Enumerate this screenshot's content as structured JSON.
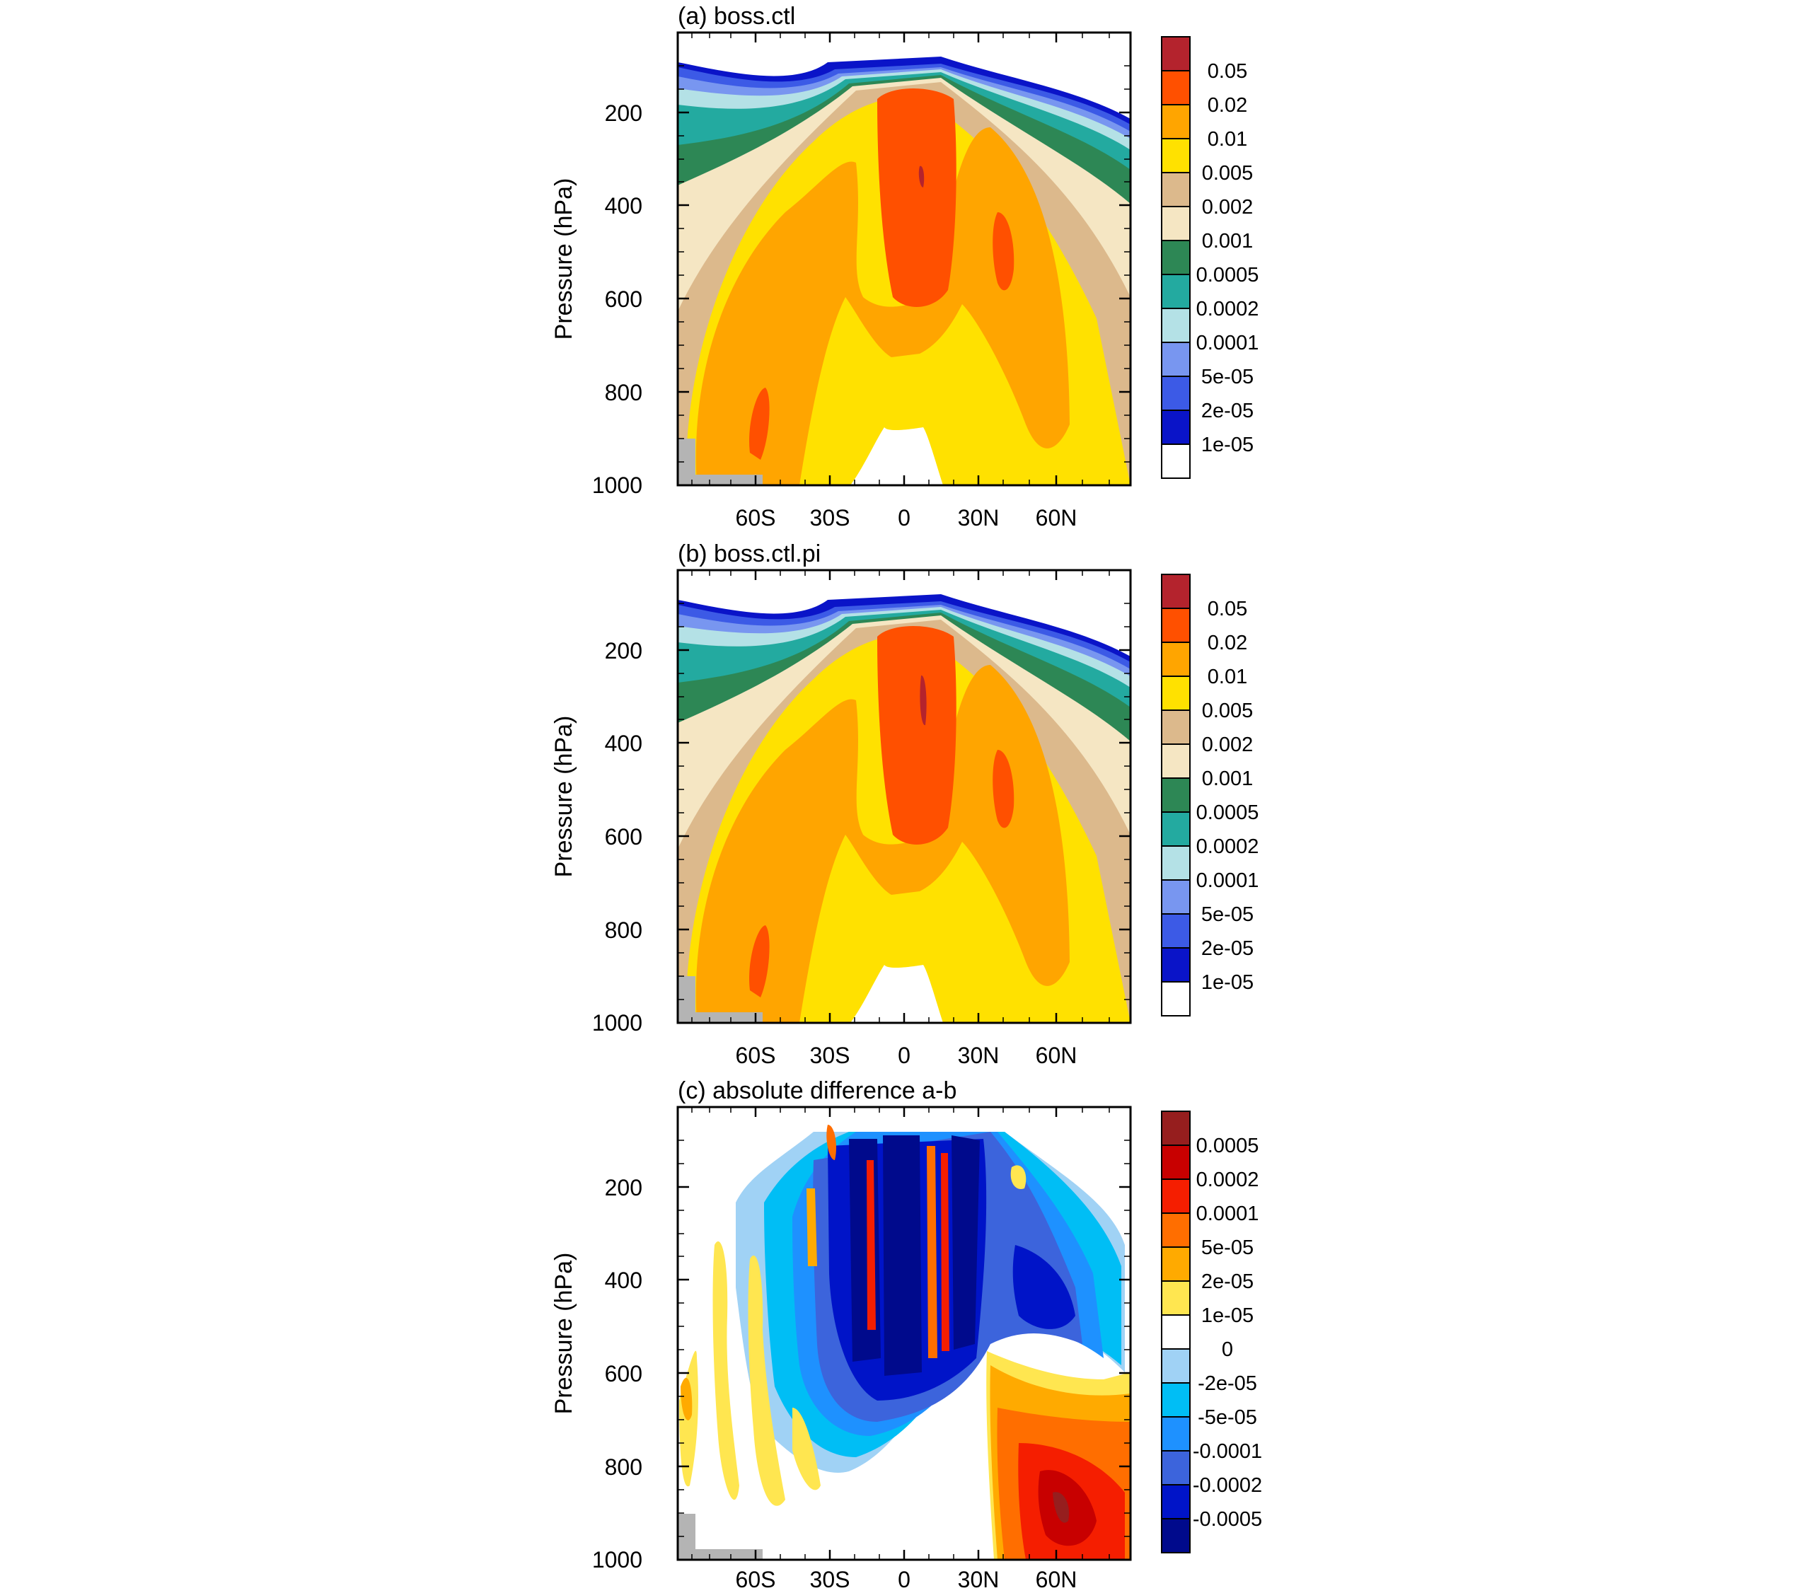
{
  "figure": {
    "panels": [
      {
        "id": "a",
        "title": "(a) boss.ctl",
        "ylabel": "Pressure (hPa)",
        "yticks": [
          "200",
          "400",
          "600",
          "800",
          "1000"
        ],
        "xticks": [
          "60S",
          "30S",
          "0",
          "30N",
          "60N"
        ],
        "colorbar_labels": [
          "0.05",
          "0.02",
          "0.01",
          "0.005",
          "0.002",
          "0.001",
          "0.0005",
          "0.0002",
          "0.0001",
          "5e-05",
          "2e-05",
          "1e-05"
        ]
      },
      {
        "id": "b",
        "title": "(b) boss.ctl.pi",
        "ylabel": "Pressure (hPa)",
        "yticks": [
          "200",
          "400",
          "600",
          "800",
          "1000"
        ],
        "xticks": [
          "60S",
          "30S",
          "0",
          "30N",
          "60N"
        ],
        "colorbar_labels": [
          "0.05",
          "0.02",
          "0.01",
          "0.005",
          "0.002",
          "0.001",
          "0.0005",
          "0.0002",
          "0.0001",
          "5e-05",
          "2e-05",
          "1e-05"
        ]
      },
      {
        "id": "c",
        "title": "(c) absolute difference a-b",
        "ylabel": "Pressure (hPa)",
        "yticks": [
          "200",
          "400",
          "600",
          "800",
          "1000"
        ],
        "xticks": [
          "60S",
          "30S",
          "0",
          "30N",
          "60N"
        ],
        "colorbar_labels": [
          "0.0005",
          "0.0002",
          "0.0001",
          "5e-05",
          "2e-05",
          "1e-05",
          "0",
          "-2e-05",
          "-5e-05",
          "-0.0001",
          "-0.0002",
          "-0.0005"
        ]
      }
    ]
  },
  "chart_data": [
    {
      "type": "heatmap",
      "title": "(a) boss.ctl",
      "xlabel": "",
      "ylabel": "Pressure (hPa)",
      "x_ticks": [
        "60S",
        "30S",
        "0",
        "30N",
        "60N"
      ],
      "y_ticks": [
        200,
        400,
        600,
        800,
        1000
      ],
      "y_reversed": true,
      "x_range": [
        -90,
        90
      ],
      "y_range": [
        1000,
        30
      ],
      "levels": [
        1e-05,
        2e-05,
        5e-05,
        0.0001,
        0.0002,
        0.0005,
        0.001,
        0.002,
        0.005,
        0.01,
        0.02,
        0.05
      ],
      "colors": [
        "#ffffff",
        "#0a14c8",
        "#3c5ae6",
        "#7896f0",
        "#b4e1e6",
        "#23aaa0",
        "#2d8755",
        "#f5e6c3",
        "#dcb98c",
        "#ffe100",
        "#ffa500",
        "#ff5000",
        "#b4232d"
      ],
      "features": [
        {
          "name": "tropical upper-tropospheric maximum",
          "level_range": "0.02-0.05",
          "x": [
            -8,
            14
          ],
          "p": [
            140,
            600
          ]
        },
        {
          "name": "northern midlatitude maximum",
          "level_range": "0.02-0.05",
          "x": [
            38,
            44
          ],
          "p": [
            430,
            560
          ]
        },
        {
          "name": "southern high-latitude maximum",
          "level_range": "0.02-0.05",
          "x": [
            -63,
            -58
          ],
          "p": [
            810,
            950
          ]
        },
        {
          "name": "lower-tropospheric tropical minimum",
          "level_range": "<1e-05",
          "x": [
            -26,
            30
          ],
          "p": [
            750,
            1000
          ]
        },
        {
          "name": "missing data (topography)",
          "x": [
            -88,
            -55
          ],
          "p": [
            980,
            1000
          ]
        }
      ]
    },
    {
      "type": "heatmap",
      "title": "(b) boss.ctl.pi",
      "xlabel": "",
      "ylabel": "Pressure (hPa)",
      "x_ticks": [
        "60S",
        "30S",
        "0",
        "30N",
        "60N"
      ],
      "y_ticks": [
        200,
        400,
        600,
        800,
        1000
      ],
      "y_reversed": true,
      "x_range": [
        -90,
        90
      ],
      "y_range": [
        1000,
        30
      ],
      "levels": [
        1e-05,
        2e-05,
        5e-05,
        0.0001,
        0.0002,
        0.0005,
        0.001,
        0.002,
        0.005,
        0.01,
        0.02,
        0.05
      ],
      "colors": [
        "#ffffff",
        "#0a14c8",
        "#3c5ae6",
        "#7896f0",
        "#b4e1e6",
        "#23aaa0",
        "#2d8755",
        "#f5e6c3",
        "#dcb98c",
        "#ffe100",
        "#ffa500",
        "#ff5000",
        "#b4232d"
      ],
      "features": [
        {
          "name": "tropical upper-tropospheric maximum",
          "level_range": "0.02-0.05",
          "x": [
            -8,
            14
          ],
          "p": [
            140,
            600
          ]
        },
        {
          "name": "northern midlatitude maximum",
          "level_range": "0.02-0.05",
          "x": [
            38,
            44
          ],
          "p": [
            430,
            560
          ]
        },
        {
          "name": "southern high-latitude maximum",
          "level_range": "0.02-0.05",
          "x": [
            -63,
            -58
          ],
          "p": [
            800,
            950
          ]
        },
        {
          "name": "lower-tropospheric tropical minimum",
          "level_range": "<1e-05",
          "x": [
            -26,
            30
          ],
          "p": [
            750,
            1000
          ]
        },
        {
          "name": "missing data (topography)",
          "x": [
            -88,
            -55
          ],
          "p": [
            980,
            1000
          ]
        }
      ]
    },
    {
      "type": "heatmap",
      "title": "(c) absolute difference a-b",
      "xlabel": "",
      "ylabel": "Pressure (hPa)",
      "x_ticks": [
        "60S",
        "30S",
        "0",
        "30N",
        "60N"
      ],
      "y_ticks": [
        200,
        400,
        600,
        800,
        1000
      ],
      "y_reversed": true,
      "x_range": [
        -90,
        90
      ],
      "y_range": [
        1000,
        30
      ],
      "levels": [
        -0.0005,
        -0.0002,
        -0.0001,
        -5e-05,
        -2e-05,
        0,
        1e-05,
        2e-05,
        5e-05,
        0.0001,
        0.0002,
        0.0005
      ],
      "colors": [
        "#000a8c",
        "#0014c8",
        "#3c64dc",
        "#1e91ff",
        "#00bef5",
        "#a0d2f5",
        "#ffffff",
        "#ffe650",
        "#ffaa00",
        "#ff6e00",
        "#f51e00",
        "#c80000",
        "#961e1e"
      ],
      "features": [
        {
          "name": "tropical strong negative columns",
          "level_range": "<=-0.0005",
          "x": [
            -20,
            25
          ],
          "p": [
            90,
            700
          ]
        },
        {
          "name": "northern midlatitude negative",
          "level_range": "-0.0005 to -5e-05",
          "x": [
            40,
            80
          ],
          "p": [
            200,
            800
          ]
        },
        {
          "name": "northern near-surface positive",
          "level_range": "2e-05 to 0.0005",
          "x": [
            32,
            90
          ],
          "p": [
            760,
            1000
          ]
        },
        {
          "name": "tropical positive streaks",
          "level_range": "1e-05 to 0.0002",
          "x": [
            -25,
            25
          ],
          "p": [
            100,
            700
          ]
        },
        {
          "name": "missing data (topography)",
          "x": [
            -88,
            -55
          ],
          "p": [
            980,
            1000
          ]
        }
      ]
    }
  ]
}
